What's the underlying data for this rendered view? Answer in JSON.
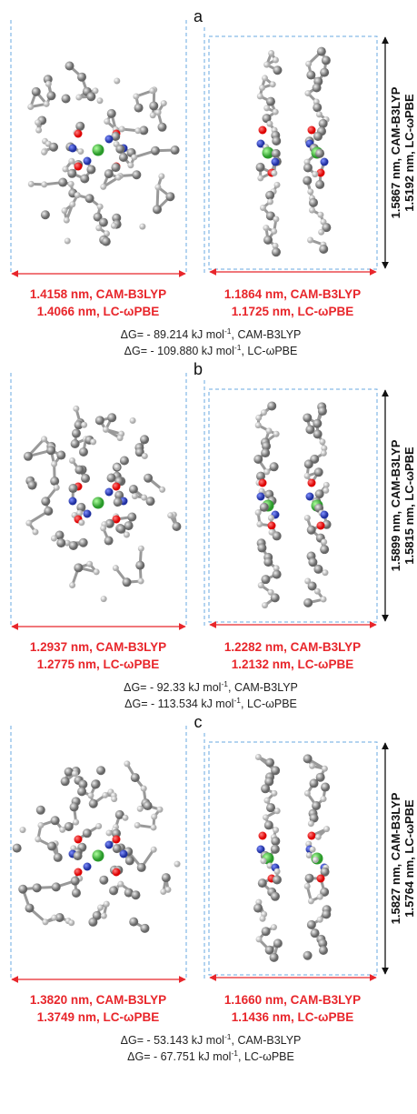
{
  "panels": [
    {
      "label": "a",
      "left_width": [
        "1.4158 nm, CAM-B3LYP",
        "1.4066 nm, LC-ωPBE"
      ],
      "right_width": [
        "1.1864 nm, CAM-B3LYP",
        "1.1725 nm, LC-ωPBE"
      ],
      "height": [
        "1.5867 nm, CAM-B3LYP",
        "1.5192 nm, LC-ωPBE"
      ],
      "energy": [
        {
          "prefix": "ΔG= - 89.214 kJ mol",
          "sup": "-1",
          "suffix": ", CAM-B3LYP"
        },
        {
          "prefix": "ΔG= - 109.880 kJ mol",
          "sup": "-1",
          "suffix": ", LC-ωPBE"
        }
      ]
    },
    {
      "label": "b",
      "left_width": [
        "1.2937 nm, CAM-B3LYP",
        "1.2775 nm, LC-ωPBE"
      ],
      "right_width": [
        "1.2282 nm, CAM-B3LYP",
        "1.2132 nm, LC-ωPBE"
      ],
      "height": [
        "1.5899 nm, CAM-B3LYP",
        "1.5815 nm, LC-ωPBE"
      ],
      "energy": [
        {
          "prefix": "ΔG= - 92.33 kJ mol",
          "sup": "-1",
          "suffix": ", CAM-B3LYP"
        },
        {
          "prefix": "ΔG= - 113.534 kJ mol",
          "sup": "-1",
          "suffix": ", LC-ωPBE"
        }
      ]
    },
    {
      "label": "c",
      "left_width": [
        "1.3820 nm, CAM-B3LYP",
        "1.3749 nm, LC-ωPBE"
      ],
      "right_width": [
        "1.1660 nm, CAM-B3LYP",
        "1.1436 nm, LC-ωPBE"
      ],
      "height": [
        "1.5827 nm, CAM-B3LYP",
        "1.5764 nm, LC-ωPBE"
      ],
      "energy": [
        {
          "prefix": "ΔG= - 53.143 kJ mol",
          "sup": "-1",
          "suffix": ", CAM-B3LYP"
        },
        {
          "prefix": "ΔG= - 67.751 kJ mol",
          "sup": "-1",
          "suffix": ", LC-ωPBE"
        }
      ]
    }
  ]
}
